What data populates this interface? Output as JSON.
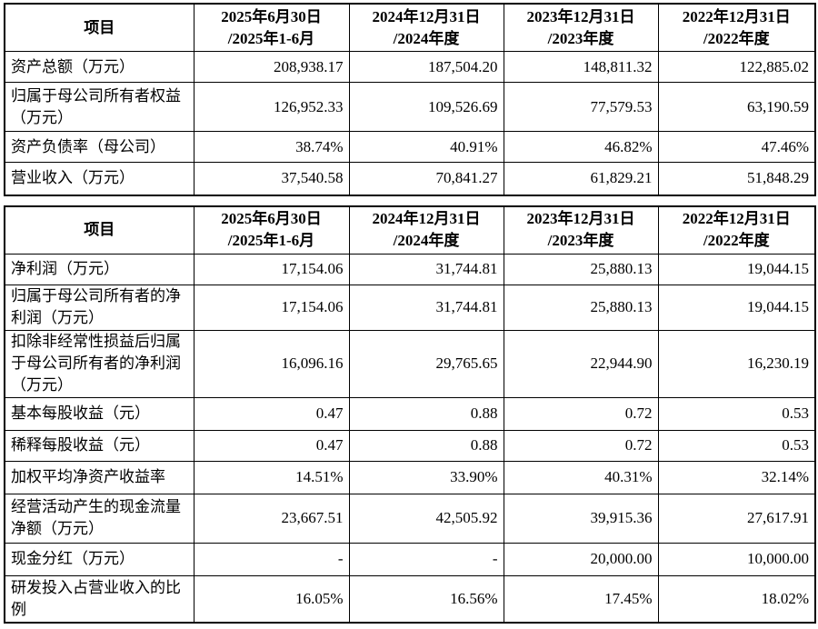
{
  "tables": [
    {
      "header": [
        [
          "项目"
        ],
        [
          "2025年6月30日",
          "/2025年1-6月"
        ],
        [
          "2024年12月31日",
          "/2024年度"
        ],
        [
          "2023年12月31日",
          "/2023年度"
        ],
        [
          "2022年12月31日",
          "/2022年度"
        ]
      ],
      "rows": [
        [
          "资产总额（万元）",
          "208,938.17",
          "187,504.20",
          "148,811.32",
          "122,885.02"
        ],
        [
          "归属于母公司所有者权益（万元）",
          "126,952.33",
          "109,526.69",
          "77,579.53",
          "63,190.59"
        ],
        [
          "资产负债率（母公司）",
          "38.74%",
          "40.91%",
          "46.82%",
          "47.46%"
        ],
        [
          "营业收入（万元）",
          "37,540.58",
          "70,841.27",
          "61,829.21",
          "51,848.29"
        ]
      ]
    },
    {
      "header": [
        [
          "项目"
        ],
        [
          "2025年6月30日",
          "/2025年1-6月"
        ],
        [
          "2024年12月31日",
          "/2024年度"
        ],
        [
          "2023年12月31日",
          "/2023年度"
        ],
        [
          "2022年12月31日",
          "/2022年度"
        ]
      ],
      "rows": [
        [
          "净利润（万元）",
          "17,154.06",
          "31,744.81",
          "25,880.13",
          "19,044.15"
        ],
        [
          "归属于母公司所有者的净利润（万元）",
          "17,154.06",
          "31,744.81",
          "25,880.13",
          "19,044.15"
        ],
        [
          "扣除非经常性损益后归属于母公司所有者的净利润（万元）",
          "16,096.16",
          "29,765.65",
          "22,944.90",
          "16,230.19"
        ],
        [
          "基本每股收益（元）",
          "0.47",
          "0.88",
          "0.72",
          "0.53"
        ],
        [
          "稀释每股收益（元）",
          "0.47",
          "0.88",
          "0.72",
          "0.53"
        ],
        [
          "加权平均净资产收益率",
          "14.51%",
          "33.90%",
          "40.31%",
          "32.14%"
        ],
        [
          "经营活动产生的现金流量净额（万元）",
          "23,667.51",
          "42,505.92",
          "39,915.36",
          "27,617.91"
        ],
        [
          "现金分红（万元）",
          "-",
          "-",
          "20,000.00",
          "10,000.00"
        ],
        [
          "研发投入占营业收入的比例",
          "16.05%",
          "16.56%",
          "17.45%",
          "18.02%"
        ]
      ]
    }
  ]
}
